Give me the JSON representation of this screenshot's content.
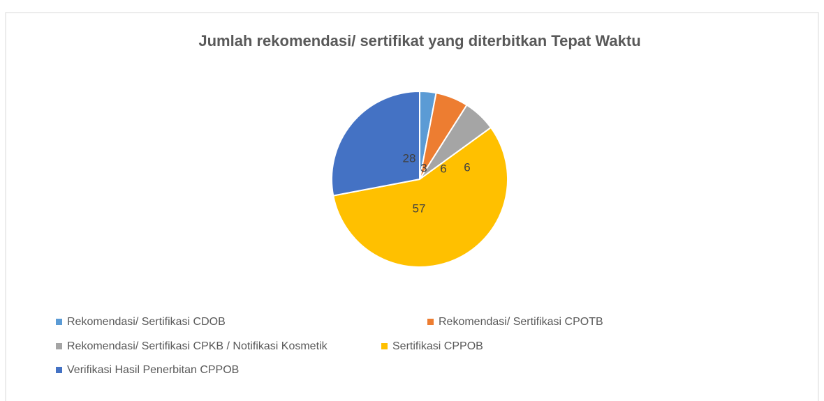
{
  "chart_data": {
    "type": "pie",
    "title": "Jumlah rekomendasi/ sertifikat yang diterbitkan Tepat Waktu",
    "categories": [
      "Rekomendasi/ Sertifikasi CDOB",
      "Rekomendasi/ Sertifikasi CPOTB",
      "Rekomendasi/ Sertifikasi CPKB / Notifikasi Kosmetik",
      "Sertifikasi CPPOB",
      "Verifikasi Hasil Penerbitan CPPOB"
    ],
    "values": [
      3,
      6,
      6,
      57,
      28
    ],
    "colors": [
      "#5b9bd5",
      "#ed7d31",
      "#a5a5a5",
      "#ffc000",
      "#4472c4"
    ],
    "legend": "bottom"
  }
}
